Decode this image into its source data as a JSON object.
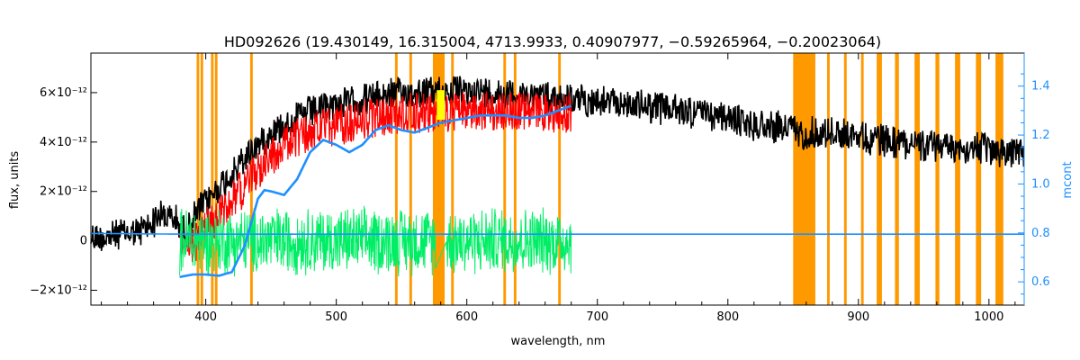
{
  "chart_data": {
    "type": "line",
    "title": "HD092626   (19.430149, 16.315004, 4713.9933, 0.40907977, −0.59265964, −0.20023064)",
    "xlabel": "wavelength, nm",
    "ylabel": "flux, units",
    "y2label": "mcont",
    "xlim": [
      312,
      1027
    ],
    "ylim": [
      -2.6e-12,
      7.6e-12
    ],
    "y2lim": [
      0.505,
      1.535
    ],
    "grid": false,
    "x_ticks": [
      400,
      500,
      600,
      700,
      800,
      900,
      1000
    ],
    "y_ticks": [
      {
        "value": -2e-12,
        "label": "−2×10⁻¹²"
      },
      {
        "value": 0,
        "label": "0"
      },
      {
        "value": 2e-12,
        "label": "2×10⁻¹²"
      },
      {
        "value": 4e-12,
        "label": "4×10⁻¹²"
      },
      {
        "value": 6e-12,
        "label": "6×10⁻¹²"
      }
    ],
    "y2_ticks": [
      0.6,
      0.8,
      1.0,
      1.2,
      1.4
    ],
    "colors": {
      "observed": "#000000",
      "model": "#ff0000",
      "residual": "#00ee66",
      "mcont": "#1e90ff",
      "masked": "#ff9900",
      "highlight": "#ffff00"
    },
    "masked_bands": [
      [
        393,
        395
      ],
      [
        396,
        398
      ],
      [
        404,
        406
      ],
      [
        407,
        409
      ],
      [
        434,
        436
      ],
      [
        545,
        547
      ],
      [
        556,
        558
      ],
      [
        574,
        583
      ],
      [
        588,
        590
      ],
      [
        628,
        630
      ],
      [
        636,
        638
      ],
      [
        670,
        672
      ],
      [
        850,
        867
      ],
      [
        876,
        878
      ],
      [
        889,
        891
      ],
      [
        902,
        904
      ],
      [
        914,
        918
      ],
      [
        928,
        931
      ],
      [
        943,
        947
      ],
      [
        959,
        962
      ],
      [
        974,
        978
      ],
      [
        990,
        994
      ],
      [
        1005,
        1011
      ]
    ],
    "series": [
      {
        "key": "observed",
        "x": [
          312,
          330,
          350,
          365,
          375,
          385,
          395,
          410,
          425,
          440,
          455,
          470,
          485,
          500,
          520,
          540,
          560,
          580,
          600,
          620,
          640,
          660,
          680,
          700,
          720,
          740,
          760,
          780,
          800,
          820,
          840,
          850,
          855,
          870,
          900,
          930,
          960,
          990,
          1010,
          1027
        ],
        "y": [
          6e-13,
          7e-13,
          8.5e-13,
          1.5e-12,
          1.4e-12,
          8e-13,
          1.8e-12,
          2.6e-12,
          3.5e-12,
          4.4e-12,
          5e-12,
          5.5e-12,
          5.8e-12,
          6e-12,
          6.2e-12,
          6.4e-12,
          6.5e-12,
          6.5e-12,
          6.5e-12,
          6.5e-12,
          6.4e-12,
          6.3e-12,
          6.2e-12,
          6.1e-12,
          6e-12,
          5.9e-12,
          5.8e-12,
          5.6e-12,
          5.4e-12,
          5.2e-12,
          5.1e-12,
          5e-12,
          4.8e-12,
          4.9e-12,
          4.7e-12,
          4.5e-12,
          4.3e-12,
          4.2e-12,
          4.1e-12,
          4e-12
        ]
      },
      {
        "key": "model",
        "x": [
          380,
          390,
          400,
          410,
          420,
          430,
          440,
          450,
          460,
          470,
          480,
          490,
          500,
          520,
          540,
          560,
          580,
          600,
          620,
          640,
          660,
          680
        ],
        "y": [
          4e-13,
          6e-13,
          1.2e-12,
          1.8e-12,
          2.4e-12,
          3e-12,
          3.6e-12,
          4.2e-12,
          4.6e-12,
          4.9e-12,
          5.1e-12,
          5.3e-12,
          5.4e-12,
          5.6e-12,
          5.8e-12,
          5.9e-12,
          5.9e-12,
          5.95e-12,
          6e-12,
          5.95e-12,
          5.9e-12,
          5.85e-12
        ]
      },
      {
        "key": "residual",
        "x": [
          380,
          400,
          420,
          440,
          460,
          480,
          500,
          520,
          540,
          560,
          575,
          585,
          600,
          620,
          640,
          660,
          680
        ],
        "y": [
          0,
          0,
          0,
          0,
          0,
          0,
          0,
          0,
          0,
          0,
          0,
          0,
          0,
          0,
          0,
          0,
          0
        ]
      },
      {
        "key": "mcont",
        "axis": "y2",
        "x": [
          380,
          390,
          400,
          410,
          420,
          430,
          440,
          445,
          450,
          460,
          470,
          480,
          490,
          500,
          510,
          520,
          530,
          540,
          550,
          560,
          570,
          580,
          590,
          600,
          610,
          620,
          630,
          640,
          650,
          660,
          670,
          680
        ],
        "y": [
          0.62,
          0.63,
          0.63,
          0.625,
          0.64,
          0.75,
          0.94,
          0.975,
          0.97,
          0.955,
          1.02,
          1.13,
          1.18,
          1.16,
          1.13,
          1.16,
          1.22,
          1.24,
          1.22,
          1.21,
          1.23,
          1.25,
          1.26,
          1.27,
          1.28,
          1.28,
          1.28,
          1.27,
          1.27,
          1.28,
          1.3,
          1.32
        ]
      },
      {
        "key": "mcont_baseline",
        "axis": "y2",
        "x": [
          312,
          380,
          680,
          1027
        ],
        "y": [
          0.798,
          0.795,
          0.795,
          0.795
        ]
      }
    ]
  }
}
